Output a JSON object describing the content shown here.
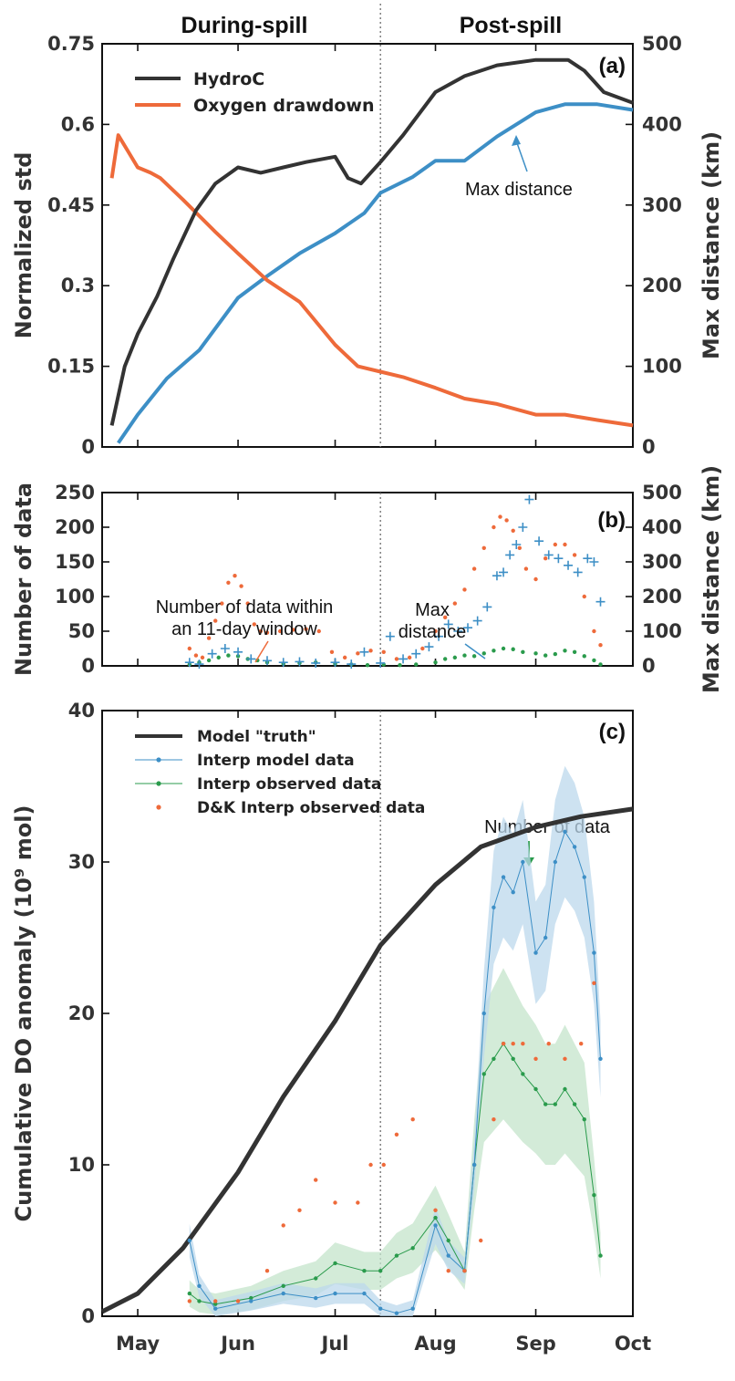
{
  "colors": {
    "hydroc": "#333333",
    "oxygen": "#ee6a3a",
    "blue": "#3d8fc6",
    "green": "#2a9b4c",
    "orange_dots": "#ee6a3a",
    "band_blue": "#bcd8ec",
    "band_green": "#c4e4cb"
  },
  "headers": {
    "during": "During-spill",
    "post": "Post-spill"
  },
  "chart_data": [
    {
      "panel_tag": "(a)",
      "type": "line",
      "ylabel_left": "Normalized std",
      "ylabel_right": "Max distance (km)",
      "ylim_left": [
        0,
        0.75
      ],
      "ylim_right": [
        0,
        500
      ],
      "yticks_left": [
        "0",
        "0.15",
        "0.3",
        "0.45",
        "0.6",
        "0.75"
      ],
      "yticks_right": [
        "0",
        "100",
        "200",
        "300",
        "400",
        "500"
      ],
      "annotation": "Max distance",
      "series": [
        {
          "name": "HydroC",
          "axis": "left",
          "x": [
            "04-23",
            "04-27",
            "05-01",
            "05-07",
            "05-12",
            "05-19",
            "05-25",
            "06-01",
            "06-08",
            "06-15",
            "06-22",
            "07-01",
            "07-05",
            "07-09",
            "07-15",
            "07-22",
            "08-01",
            "08-10",
            "08-20",
            "09-01",
            "09-11",
            "09-16",
            "09-22",
            "10-01"
          ],
          "y": [
            0.04,
            0.15,
            0.21,
            0.28,
            0.35,
            0.44,
            0.49,
            0.52,
            0.51,
            0.52,
            0.53,
            0.54,
            0.5,
            0.49,
            0.53,
            0.58,
            0.66,
            0.69,
            0.71,
            0.72,
            0.72,
            0.7,
            0.66,
            0.64
          ]
        },
        {
          "name": "Oxygen drawdown",
          "axis": "left",
          "x": [
            "04-23",
            "04-25",
            "04-28",
            "05-01",
            "05-05",
            "05-08",
            "05-15",
            "05-25",
            "06-01",
            "06-10",
            "06-20",
            "07-01",
            "07-08",
            "07-15",
            "07-22",
            "08-01",
            "08-10",
            "08-20",
            "09-01",
            "09-10",
            "09-20",
            "10-01"
          ],
          "y": [
            0.5,
            0.58,
            0.55,
            0.52,
            0.51,
            0.5,
            0.46,
            0.4,
            0.36,
            0.31,
            0.27,
            0.19,
            0.15,
            0.14,
            0.13,
            0.11,
            0.09,
            0.08,
            0.06,
            0.06,
            0.05,
            0.04
          ]
        },
        {
          "name": "Max distance",
          "axis": "right",
          "x": [
            "04-25",
            "05-01",
            "05-10",
            "05-20",
            "06-01",
            "06-10",
            "06-20",
            "07-01",
            "07-10",
            "07-15",
            "07-25",
            "08-01",
            "08-10",
            "08-20",
            "09-01",
            "09-10",
            "09-20",
            "10-01"
          ],
          "y": [
            5,
            40,
            85,
            120,
            185,
            212,
            240,
            265,
            290,
            315,
            335,
            355,
            355,
            385,
            415,
            425,
            425,
            418
          ]
        }
      ]
    },
    {
      "panel_tag": "(b)",
      "type": "scatter",
      "ylabel_left": "Number of data",
      "ylabel_right": "Max distance (km)",
      "ylim_left": [
        0,
        250
      ],
      "ylim_right": [
        0,
        500
      ],
      "yticks_left": [
        "0",
        "50",
        "100",
        "150",
        "200",
        "250"
      ],
      "yticks_right": [
        "0",
        "100",
        "200",
        "300",
        "400",
        "500"
      ],
      "annotations": [
        "Number of data within an 11-day window",
        "Max distance",
        "Number of data"
      ],
      "series": [
        {
          "name": "Number of data within an 11-day window",
          "axis": "left",
          "x": [
            "05-17",
            "05-19",
            "05-21",
            "05-23",
            "05-25",
            "05-27",
            "05-29",
            "05-31",
            "06-02",
            "06-04",
            "06-06",
            "06-08",
            "06-10",
            "06-14",
            "06-18",
            "06-22",
            "06-26",
            "06-30",
            "07-04",
            "07-08",
            "07-12",
            "07-16",
            "07-20",
            "07-24",
            "07-28",
            "08-01",
            "08-04",
            "08-07",
            "08-10",
            "08-13",
            "08-16",
            "08-19",
            "08-21",
            "08-23",
            "08-25",
            "08-27",
            "08-29",
            "09-01",
            "09-04",
            "09-07",
            "09-10",
            "09-13",
            "09-16",
            "09-19",
            "09-21"
          ],
          "y": [
            25,
            15,
            12,
            40,
            65,
            90,
            120,
            130,
            115,
            90,
            60,
            50,
            48,
            50,
            52,
            53,
            50,
            20,
            12,
            18,
            22,
            20,
            10,
            12,
            25,
            50,
            70,
            90,
            110,
            140,
            170,
            200,
            215,
            210,
            195,
            170,
            140,
            125,
            155,
            175,
            175,
            160,
            100,
            50,
            30
          ]
        },
        {
          "name": "Number of data",
          "axis": "left",
          "x": [
            "05-17",
            "05-20",
            "05-23",
            "05-26",
            "05-29",
            "06-01",
            "06-04",
            "06-07",
            "06-10",
            "06-15",
            "06-20",
            "06-25",
            "07-01",
            "07-06",
            "07-11",
            "07-16",
            "07-21",
            "07-26",
            "08-01",
            "08-04",
            "08-07",
            "08-10",
            "08-13",
            "08-16",
            "08-19",
            "08-22",
            "08-25",
            "08-28",
            "09-01",
            "09-04",
            "09-07",
            "09-10",
            "09-13",
            "09-16",
            "09-19",
            "09-21"
          ],
          "y": [
            2,
            5,
            8,
            12,
            15,
            14,
            10,
            8,
            5,
            3,
            4,
            5,
            3,
            2,
            1,
            2,
            1,
            2,
            5,
            10,
            12,
            15,
            14,
            18,
            22,
            25,
            24,
            20,
            18,
            15,
            17,
            22,
            20,
            14,
            8,
            2
          ]
        },
        {
          "name": "Max distance",
          "axis": "right",
          "x": [
            "05-17",
            "05-20",
            "05-24",
            "05-28",
            "06-01",
            "06-05",
            "06-10",
            "06-15",
            "06-20",
            "06-25",
            "07-01",
            "07-06",
            "07-10",
            "07-15",
            "07-18",
            "07-22",
            "07-26",
            "07-30",
            "08-02",
            "08-05",
            "08-08",
            "08-11",
            "08-14",
            "08-17",
            "08-20",
            "08-22",
            "08-24",
            "08-26",
            "08-28",
            "08-30",
            "09-02",
            "09-05",
            "09-08",
            "09-11",
            "09-14",
            "09-17",
            "09-19",
            "09-21"
          ],
          "y": [
            10,
            5,
            35,
            50,
            40,
            20,
            15,
            10,
            12,
            8,
            10,
            5,
            40,
            8,
            85,
            20,
            35,
            55,
            85,
            120,
            100,
            110,
            130,
            170,
            260,
            270,
            320,
            350,
            400,
            480,
            360,
            320,
            310,
            290,
            270,
            310,
            300,
            185
          ]
        }
      ]
    },
    {
      "panel_tag": "(c)",
      "type": "line",
      "ylabel": "Cumulative DO anomaly (10⁹ mol)",
      "ylim": [
        0,
        40
      ],
      "yticks": [
        "0",
        "10",
        "20",
        "30",
        "40"
      ],
      "xticks": [
        "May",
        "Jun",
        "Jul",
        "Aug",
        "Sep",
        "Oct"
      ],
      "legend": [
        "Model \"truth\"",
        "Interp model data",
        "Interp observed data",
        "D&K Interp observed data"
      ],
      "series": [
        {
          "name": "Model \"truth\"",
          "x": [
            "04-20",
            "05-01",
            "05-15",
            "06-01",
            "06-15",
            "07-01",
            "07-15",
            "08-01",
            "08-15",
            "09-01",
            "09-15",
            "10-01"
          ],
          "y": [
            0.3,
            1.5,
            4.5,
            9.5,
            14.5,
            19.5,
            24.5,
            28.5,
            31,
            32.3,
            33,
            33.5
          ]
        },
        {
          "name": "Interp model data",
          "x": [
            "05-17",
            "05-20",
            "05-25",
            "06-05",
            "06-15",
            "06-25",
            "07-01",
            "07-10",
            "07-15",
            "07-20",
            "07-25",
            "08-01",
            "08-05",
            "08-10",
            "08-13",
            "08-16",
            "08-19",
            "08-22",
            "08-25",
            "08-28",
            "09-01",
            "09-04",
            "09-07",
            "09-10",
            "09-13",
            "09-16",
            "09-19",
            "09-21"
          ],
          "y": [
            5,
            2,
            0.5,
            1,
            1.5,
            1.2,
            1.5,
            1.5,
            0.5,
            0.2,
            0.5,
            6,
            4,
            3,
            10,
            20,
            27,
            29,
            28,
            30,
            24,
            25,
            30,
            32,
            31,
            29,
            24,
            17
          ]
        },
        {
          "name": "Interp observed data",
          "x": [
            "05-17",
            "05-20",
            "05-25",
            "06-05",
            "06-15",
            "06-25",
            "07-01",
            "07-10",
            "07-15",
            "07-20",
            "07-25",
            "08-01",
            "08-05",
            "08-10",
            "08-13",
            "08-16",
            "08-19",
            "08-22",
            "08-25",
            "08-28",
            "09-01",
            "09-04",
            "09-07",
            "09-10",
            "09-13",
            "09-16",
            "09-19",
            "09-21"
          ],
          "y": [
            1.5,
            1,
            0.8,
            1.2,
            2,
            2.5,
            3.5,
            3,
            3,
            4,
            4.5,
            6.5,
            5,
            3,
            10,
            16,
            17,
            18,
            17,
            16,
            15,
            14,
            14,
            15,
            14,
            13,
            8,
            4
          ]
        },
        {
          "name": "D&K Interp observed data",
          "x": [
            "05-17",
            "05-25",
            "06-01",
            "06-10",
            "06-15",
            "06-20",
            "06-25",
            "07-01",
            "07-08",
            "07-12",
            "07-16",
            "07-20",
            "07-25",
            "08-01",
            "08-05",
            "08-10",
            "08-15",
            "08-19",
            "08-22",
            "08-25",
            "08-28",
            "09-01",
            "09-05",
            "09-10",
            "09-15",
            "09-19"
          ],
          "y": [
            1,
            1,
            1,
            3,
            6,
            7,
            9,
            7.5,
            7.5,
            10,
            10,
            12,
            13,
            7,
            3,
            3,
            5,
            13,
            18,
            18,
            18,
            17,
            18,
            17,
            18,
            22
          ]
        }
      ]
    }
  ]
}
